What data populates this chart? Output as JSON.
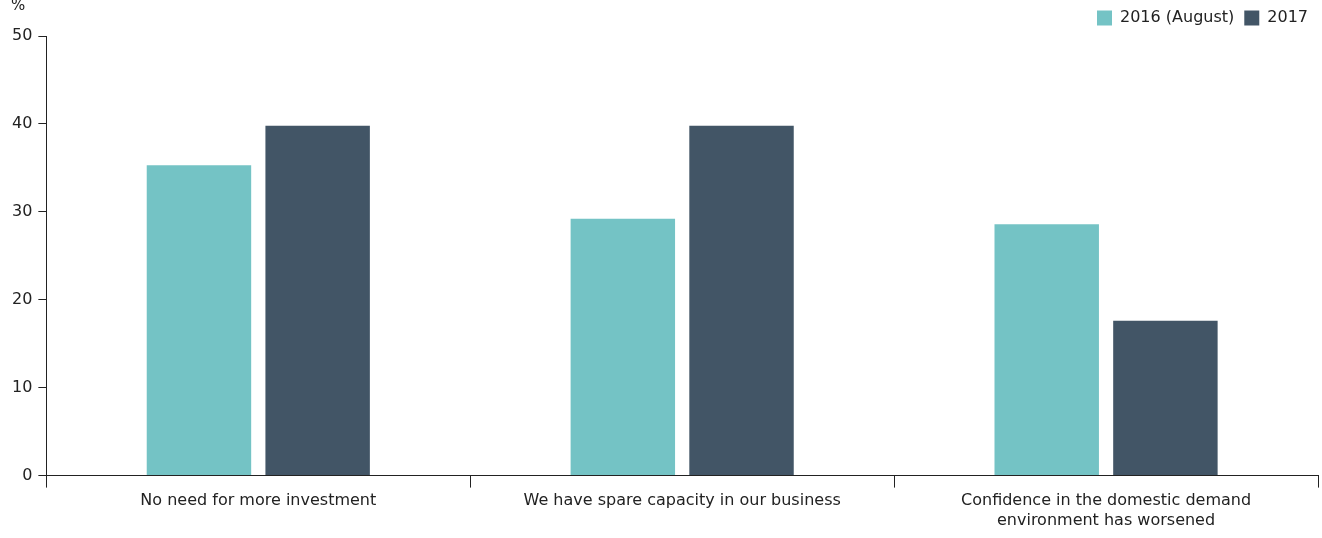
{
  "chart_data": {
    "type": "bar",
    "ylabel": "%",
    "categories": [
      "No need for more investment",
      "We have spare capacity in our business",
      "Confidence in the domestic demand environment has worsened"
    ],
    "series": [
      {
        "name": "2016 (August)",
        "color": "#74c3c5",
        "values": [
          35.3,
          29.2,
          28.6
        ]
      },
      {
        "name": "2017",
        "color": "#425566",
        "values": [
          39.8,
          39.8,
          17.6
        ]
      }
    ],
    "ylim": [
      0,
      50
    ],
    "yticks": [
      0,
      10,
      20,
      30,
      40,
      50
    ],
    "legend": "top right"
  }
}
